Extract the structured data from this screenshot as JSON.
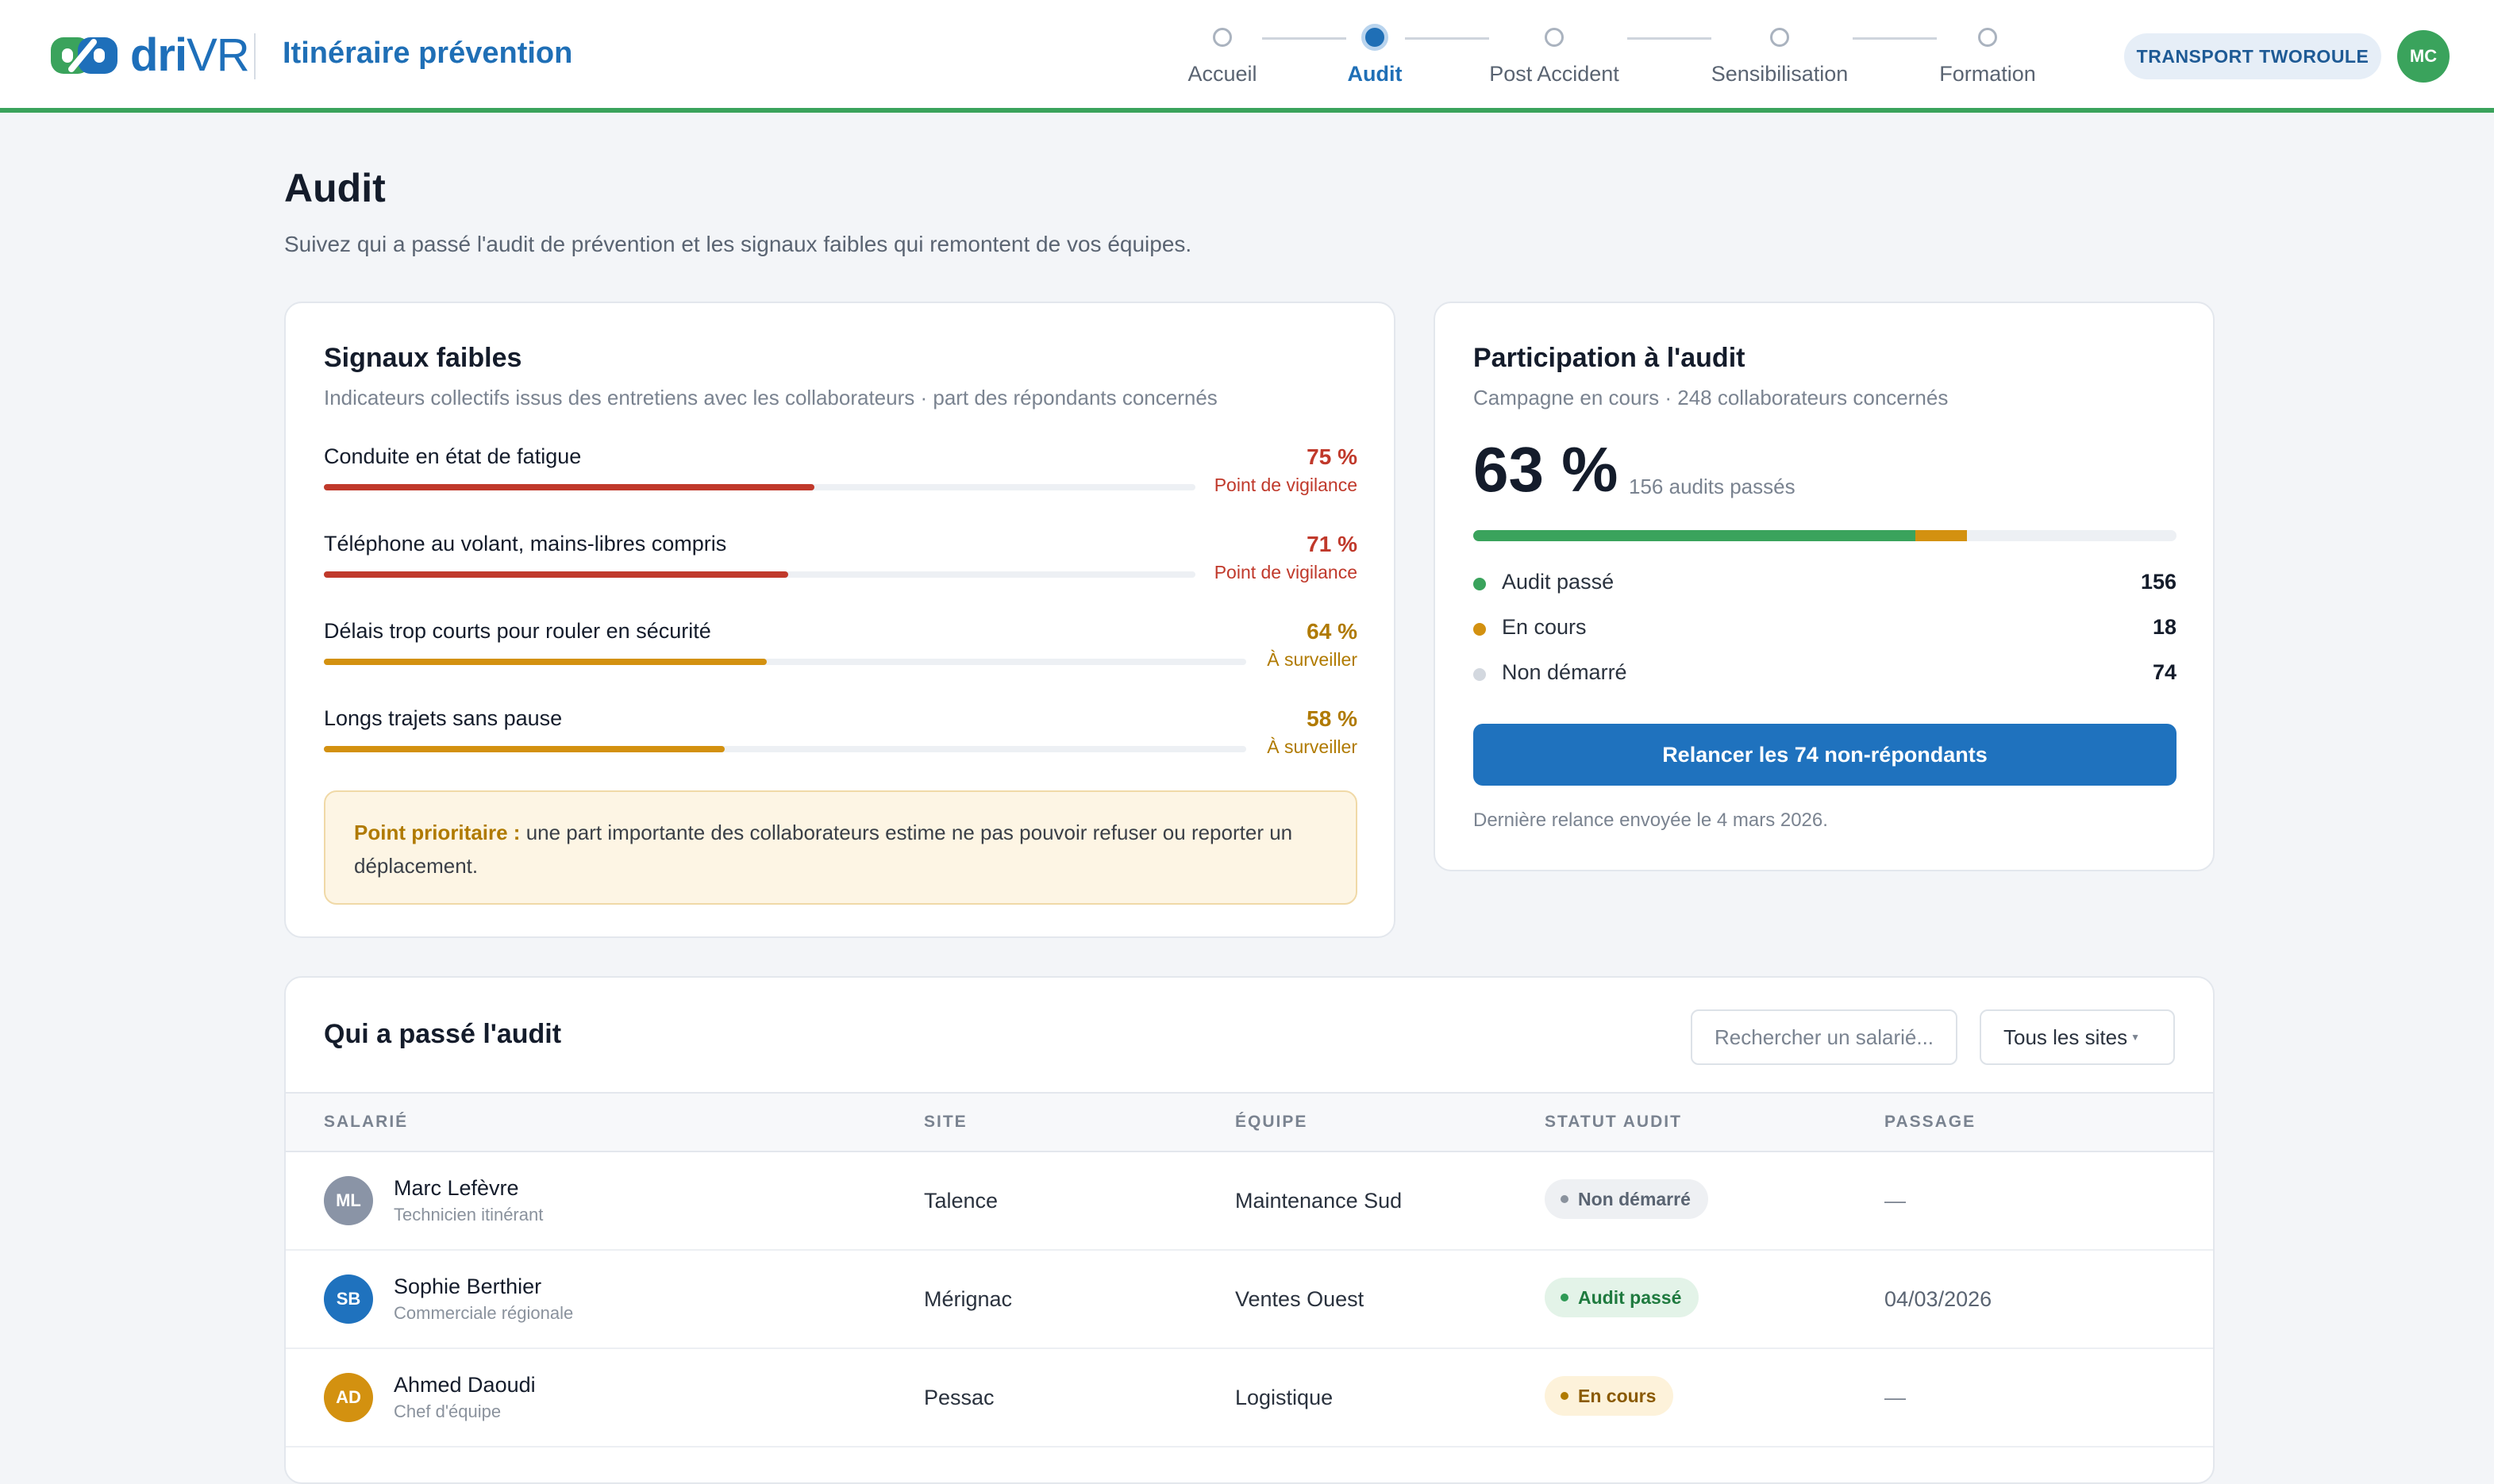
{
  "header": {
    "brand": {
      "bold": "dri",
      "light": "VR"
    },
    "app_title": "Itinéraire prévention",
    "steps": [
      {
        "label": "Accueil",
        "active": false
      },
      {
        "label": "Audit",
        "active": true
      },
      {
        "label": "Post Accident",
        "active": false
      },
      {
        "label": "Sensibilisation",
        "active": false
      },
      {
        "label": "Formation",
        "active": false
      }
    ],
    "company": "TRANSPORT TWOROULE",
    "user_initials": "MC"
  },
  "page": {
    "title": "Audit",
    "subtitle": "Suivez qui a passé l'audit de prévention et les signaux faibles qui remontent de vos équipes."
  },
  "signals": {
    "title": "Signaux faibles",
    "subtitle": "Indicateurs collectifs issus des entretiens avec les collaborateurs · part des répondants concernés",
    "items": [
      {
        "label": "Conduite en état de fatigue",
        "value_text": "75 %",
        "value": 75,
        "status": "Point de vigilance",
        "level": "red"
      },
      {
        "label": "Téléphone au volant, mains-libres compris",
        "value_text": "71 %",
        "value": 71,
        "status": "Point de vigilance",
        "level": "red"
      },
      {
        "label": "Délais trop courts pour rouler en sécurité",
        "value_text": "64 %",
        "value": 64,
        "status": "À surveiller",
        "level": "amber"
      },
      {
        "label": "Longs trajets sans pause",
        "value_text": "58 %",
        "value": 58,
        "status": "À surveiller",
        "level": "amber"
      }
    ],
    "priority": {
      "lead": "Point prioritaire :",
      "text": " une part importante des collaborateurs estime ne pas pouvoir refuser ou reporter un déplacement."
    }
  },
  "participation": {
    "title": "Participation à l'audit",
    "subtitle": "Campagne en cours · 248 collaborateurs concernés",
    "percent_text": "63 %",
    "note": "156 audits passés",
    "total": 248,
    "legend": [
      {
        "label": "Audit passé",
        "value": "156",
        "count": 156,
        "color": "#3aa35c"
      },
      {
        "label": "En cours",
        "value": "18",
        "count": 18,
        "color": "#d39110"
      },
      {
        "label": "Non démarré",
        "value": "74",
        "count": 74,
        "color": "#d3d8df"
      }
    ],
    "button": "Relancer les 74 non-répondants",
    "last_relaunch": "Dernière relance envoyée le 4 mars 2026."
  },
  "table": {
    "title": "Qui a passé l'audit",
    "search_placeholder": "Rechercher un salarié...",
    "site_filter": "Tous les sites",
    "columns": [
      "SALARIÉ",
      "SITE",
      "ÉQUIPE",
      "STATUT AUDIT",
      "PASSAGE"
    ],
    "rows": [
      {
        "initials": "ML",
        "avatar_color": "#8a94a6",
        "name": "Marc Lefèvre",
        "role": "Technicien itinérant",
        "site": "Talence",
        "team": "Maintenance Sud",
        "status": "Non démarré",
        "status_kind": "grey",
        "date": "—"
      },
      {
        "initials": "SB",
        "avatar_color": "#1f72be",
        "name": "Sophie Berthier",
        "role": "Commerciale régionale",
        "site": "Mérignac",
        "team": "Ventes Ouest",
        "status": "Audit passé",
        "status_kind": "green",
        "date": "04/03/2026"
      },
      {
        "initials": "AD",
        "avatar_color": "#d39110",
        "name": "Ahmed Daoudi",
        "role": "Chef d'équipe",
        "site": "Pessac",
        "team": "Logistique",
        "status": "En cours",
        "status_kind": "amber",
        "date": "—"
      }
    ]
  }
}
